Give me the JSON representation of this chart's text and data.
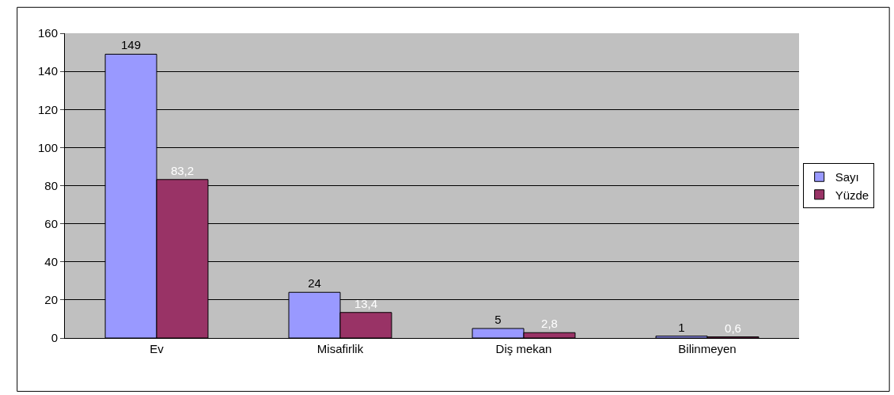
{
  "chart_data": {
    "type": "bar",
    "categories": [
      "Ev",
      "Misafirlik",
      "Diş mekan",
      "Bilinmeyen"
    ],
    "series": [
      {
        "name": "Sayı",
        "color": "#9999ff",
        "values": [
          149,
          24,
          5,
          1
        ],
        "value_labels": [
          "149",
          "24",
          "5",
          "1"
        ]
      },
      {
        "name": "Yüzde",
        "color": "#993366",
        "values": [
          83.2,
          13.4,
          2.8,
          0.6
        ],
        "value_labels": [
          "83,2",
          "13,4",
          "2,8",
          "0,6"
        ]
      }
    ],
    "ylim": [
      0,
      160
    ],
    "yticks": [
      0,
      20,
      40,
      60,
      80,
      100,
      120,
      140,
      160
    ],
    "grid": "y",
    "legend": "right"
  }
}
